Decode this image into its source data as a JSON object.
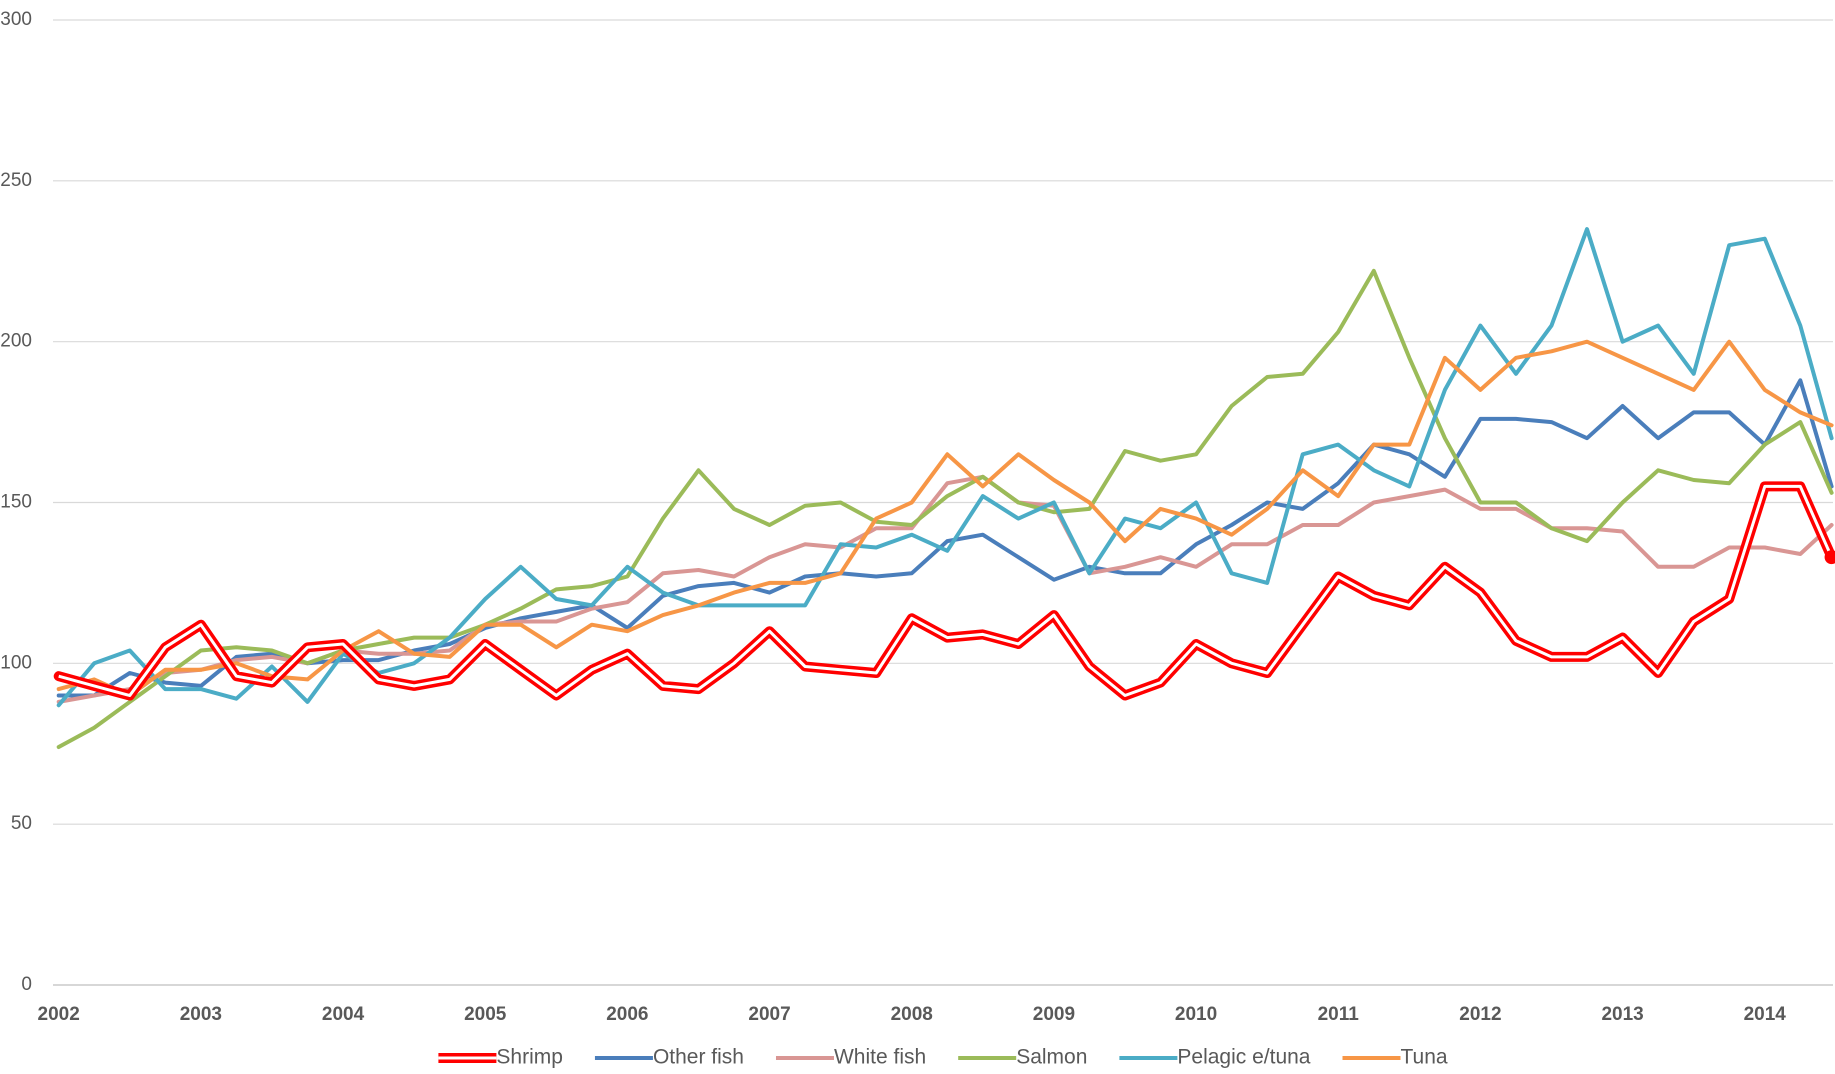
{
  "chart_data": {
    "type": "line",
    "x": [
      2002,
      2002.25,
      2002.5,
      2002.75,
      2003,
      2003.25,
      2003.5,
      2003.75,
      2004,
      2004.25,
      2004.5,
      2004.75,
      2005,
      2005.25,
      2005.5,
      2005.75,
      2006,
      2006.25,
      2006.5,
      2006.75,
      2007,
      2007.25,
      2007.5,
      2007.75,
      2008,
      2008.25,
      2008.5,
      2008.75,
      2009,
      2009.25,
      2009.5,
      2009.75,
      2010,
      2010.25,
      2010.5,
      2010.75,
      2011,
      2011.25,
      2011.5,
      2011.75,
      2012,
      2012.25,
      2012.5,
      2012.75,
      2013,
      2013.25,
      2013.5,
      2013.75,
      2014,
      2014.25,
      2014.47
    ],
    "series": [
      {
        "name": "Shrimp",
        "color": "#ff0000",
        "values": [
          96,
          93,
          90,
          105,
          112,
          96,
          94,
          105,
          106,
          95,
          93,
          95,
          106,
          98,
          90,
          98,
          103,
          93,
          92,
          100,
          110,
          99,
          98,
          97,
          114,
          108,
          109,
          106,
          115,
          99,
          90,
          94,
          106,
          100,
          97,
          112,
          127,
          121,
          118,
          130,
          122,
          107,
          102,
          102,
          108,
          97,
          113,
          120,
          155,
          155,
          133
        ]
      },
      {
        "name": "Other fish",
        "color": "#4a7ebb",
        "values": [
          90,
          90,
          97,
          94,
          93,
          102,
          103,
          100,
          101,
          101,
          104,
          106,
          111,
          114,
          116,
          118,
          111,
          121,
          124,
          125,
          122,
          127,
          128,
          127,
          128,
          138,
          140,
          133,
          126,
          130,
          128,
          128,
          137,
          143,
          150,
          148,
          156,
          168,
          165,
          158,
          176,
          176,
          175,
          170,
          180,
          170,
          178,
          178,
          168,
          188,
          155
        ]
      },
      {
        "name": "White fish",
        "color": "#d99694",
        "values": [
          88,
          90,
          92,
          97,
          98,
          101,
          102,
          100,
          104,
          103,
          103,
          104,
          112,
          113,
          113,
          117,
          119,
          128,
          129,
          127,
          133,
          137,
          136,
          142,
          142,
          156,
          158,
          150,
          149,
          128,
          130,
          133,
          130,
          137,
          137,
          143,
          143,
          150,
          152,
          154,
          148,
          148,
          142,
          142,
          141,
          130,
          130,
          136,
          136,
          134,
          143
        ]
      },
      {
        "name": "Salmon",
        "color": "#9bbb59",
        "values": [
          74,
          80,
          88,
          96,
          104,
          105,
          104,
          100,
          104,
          106,
          108,
          108,
          112,
          117,
          123,
          124,
          127,
          145,
          160,
          148,
          143,
          149,
          150,
          144,
          143,
          152,
          158,
          150,
          147,
          148,
          166,
          163,
          165,
          180,
          189,
          190,
          203,
          222,
          195,
          170,
          150,
          150,
          142,
          138,
          150,
          160,
          157,
          156,
          168,
          175,
          153
        ]
      },
      {
        "name": "Pelagic e/tuna",
        "color": "#4bacc6",
        "values": [
          87,
          100,
          104,
          92,
          92,
          89,
          99,
          88,
          103,
          97,
          100,
          108,
          120,
          130,
          120,
          118,
          130,
          122,
          118,
          118,
          118,
          118,
          137,
          136,
          140,
          135,
          152,
          145,
          150,
          128,
          145,
          142,
          150,
          128,
          125,
          165,
          168,
          160,
          155,
          185,
          205,
          190,
          205,
          235,
          200,
          205,
          190,
          230,
          232,
          205,
          170
        ]
      },
      {
        "name": "Tuna",
        "color": "#f79646",
        "values": [
          92,
          95,
          90,
          98,
          98,
          100,
          96,
          95,
          104,
          110,
          103,
          102,
          112,
          112,
          105,
          112,
          110,
          115,
          118,
          122,
          125,
          125,
          128,
          145,
          150,
          165,
          155,
          165,
          157,
          150,
          138,
          148,
          145,
          140,
          148,
          160,
          152,
          168,
          168,
          195,
          185,
          195,
          197,
          200,
          195,
          190,
          185,
          200,
          185,
          178,
          174
        ]
      }
    ],
    "xlim": [
      2001.96,
      2014.48
    ],
    "xticks": [
      2002,
      2003,
      2004,
      2005,
      2006,
      2007,
      2008,
      2009,
      2010,
      2011,
      2012,
      2013,
      2014
    ],
    "ylim": [
      0,
      300
    ],
    "yticks": [
      0,
      50,
      100,
      150,
      200,
      250,
      300
    ],
    "grid": true,
    "legend": "bottom"
  }
}
